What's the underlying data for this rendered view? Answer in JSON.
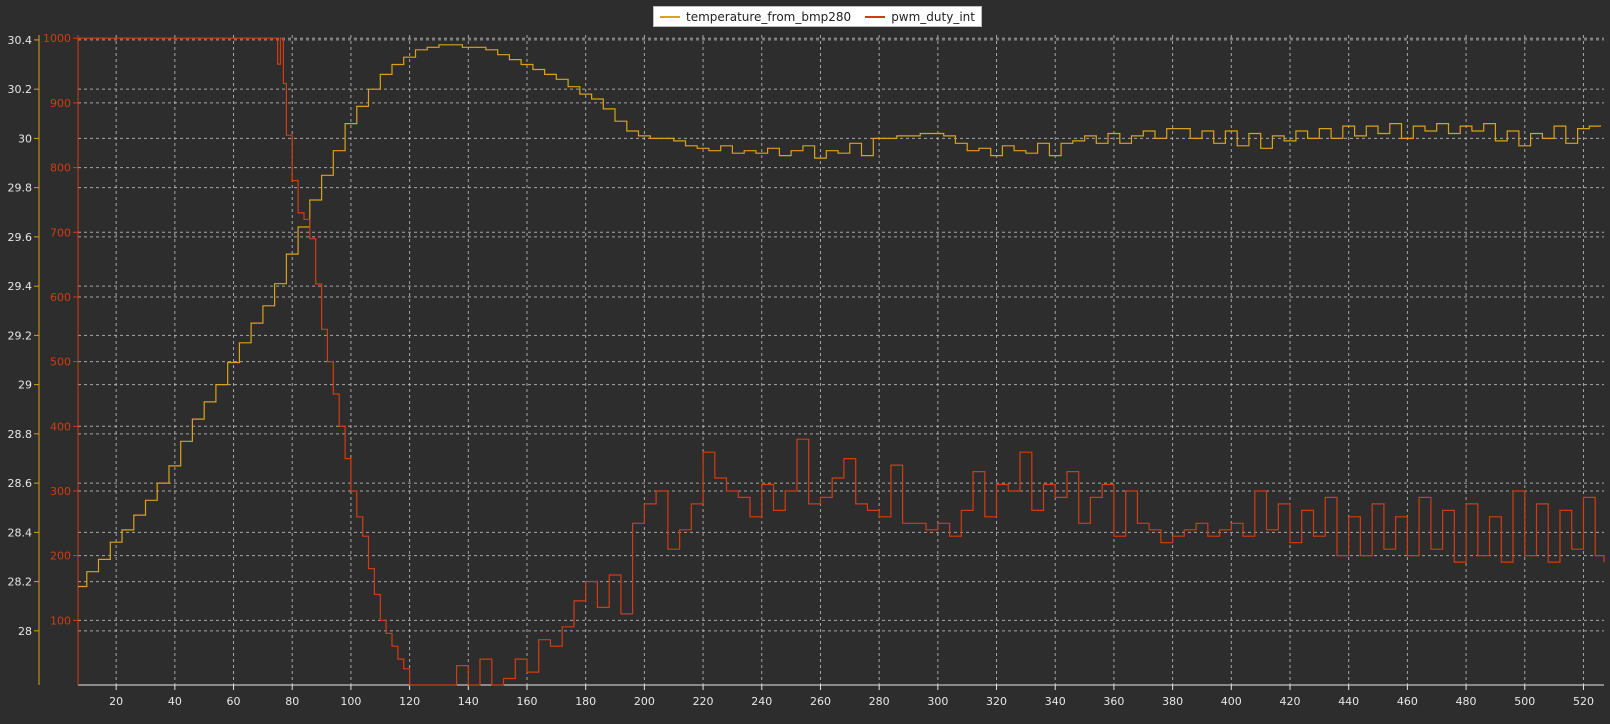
{
  "chart_data": {
    "type": "line",
    "title": "",
    "xlabel": "",
    "grid": true,
    "legend_placement": "top-center",
    "x_range": [
      7,
      527
    ],
    "x_ticks": [
      20,
      40,
      60,
      80,
      100,
      120,
      140,
      160,
      180,
      200,
      220,
      240,
      260,
      280,
      300,
      320,
      340,
      360,
      380,
      400,
      420,
      440,
      460,
      480,
      500,
      520
    ],
    "y_axes": [
      {
        "id": "temp",
        "range": [
          27.78,
          30.42
        ],
        "ticks": [
          28,
          28.2,
          28.4,
          28.6,
          28.8,
          29,
          29.2,
          29.4,
          29.6,
          29.8,
          30,
          30.2,
          30.4
        ],
        "tick_labels": [
          "28",
          "28.2",
          "28.4",
          "28.6",
          "28.8",
          "29",
          "29.2",
          "29.4",
          "29.6",
          "29.8",
          "30",
          "30.2",
          "30.4"
        ],
        "color": "#d9a21a"
      },
      {
        "id": "pwm",
        "range": [
          0,
          1005
        ],
        "ticks": [
          100,
          200,
          300,
          400,
          500,
          600,
          700,
          800,
          900,
          1000
        ],
        "tick_labels": [
          "100",
          "200",
          "300",
          "400",
          "500",
          "600",
          "700",
          "800",
          "900",
          "1000"
        ],
        "color": "#d03c12"
      }
    ],
    "series": [
      {
        "name": "temperature_from_bmp280",
        "color": "#d9a21a",
        "axis": "temp",
        "style": "step",
        "points": [
          [
            7,
            28.18
          ],
          [
            10,
            28.24
          ],
          [
            14,
            28.29
          ],
          [
            18,
            28.36
          ],
          [
            22,
            28.41
          ],
          [
            26,
            28.47
          ],
          [
            30,
            28.53
          ],
          [
            34,
            28.6
          ],
          [
            38,
            28.67
          ],
          [
            42,
            28.77
          ],
          [
            46,
            28.86
          ],
          [
            50,
            28.93
          ],
          [
            54,
            29.0
          ],
          [
            58,
            29.09
          ],
          [
            62,
            29.17
          ],
          [
            66,
            29.25
          ],
          [
            70,
            29.32
          ],
          [
            74,
            29.41
          ],
          [
            78,
            29.53
          ],
          [
            82,
            29.64
          ],
          [
            86,
            29.75
          ],
          [
            90,
            29.85
          ],
          [
            94,
            29.95
          ],
          [
            98,
            30.06
          ],
          [
            102,
            30.13
          ],
          [
            106,
            30.2
          ],
          [
            110,
            30.26
          ],
          [
            114,
            30.3
          ],
          [
            118,
            30.33
          ],
          [
            122,
            30.36
          ],
          [
            126,
            30.37
          ],
          [
            130,
            30.38
          ],
          [
            134,
            30.38
          ],
          [
            138,
            30.37
          ],
          [
            142,
            30.37
          ],
          [
            146,
            30.36
          ],
          [
            150,
            30.34
          ],
          [
            154,
            30.32
          ],
          [
            158,
            30.3
          ],
          [
            162,
            30.28
          ],
          [
            166,
            30.26
          ],
          [
            170,
            30.24
          ],
          [
            174,
            30.21
          ],
          [
            178,
            30.18
          ],
          [
            182,
            30.16
          ],
          [
            186,
            30.12
          ],
          [
            190,
            30.07
          ],
          [
            194,
            30.03
          ],
          [
            198,
            30.01
          ],
          [
            202,
            30.0
          ],
          [
            206,
            30.0
          ],
          [
            210,
            29.99
          ],
          [
            214,
            29.97
          ],
          [
            218,
            29.96
          ],
          [
            222,
            29.95
          ],
          [
            226,
            29.97
          ],
          [
            230,
            29.94
          ],
          [
            234,
            29.95
          ],
          [
            238,
            29.94
          ],
          [
            242,
            29.96
          ],
          [
            246,
            29.93
          ],
          [
            250,
            29.95
          ],
          [
            254,
            29.97
          ],
          [
            258,
            29.92
          ],
          [
            262,
            29.95
          ],
          [
            266,
            29.94
          ],
          [
            270,
            29.98
          ],
          [
            274,
            29.93
          ],
          [
            278,
            30.0
          ],
          [
            282,
            30.0
          ],
          [
            286,
            30.01
          ],
          [
            290,
            30.01
          ],
          [
            294,
            30.02
          ],
          [
            298,
            30.02
          ],
          [
            302,
            30.01
          ],
          [
            306,
            29.98
          ],
          [
            310,
            29.95
          ],
          [
            314,
            29.96
          ],
          [
            318,
            29.93
          ],
          [
            322,
            29.97
          ],
          [
            326,
            29.95
          ],
          [
            330,
            29.94
          ],
          [
            334,
            29.98
          ],
          [
            338,
            29.93
          ],
          [
            342,
            29.98
          ],
          [
            346,
            29.99
          ],
          [
            350,
            30.01
          ],
          [
            354,
            29.98
          ],
          [
            358,
            30.02
          ],
          [
            362,
            29.98
          ],
          [
            366,
            30.01
          ],
          [
            370,
            30.03
          ],
          [
            374,
            30.0
          ],
          [
            378,
            30.04
          ],
          [
            382,
            30.04
          ],
          [
            386,
            30.0
          ],
          [
            390,
            30.03
          ],
          [
            394,
            29.98
          ],
          [
            398,
            30.03
          ],
          [
            402,
            29.97
          ],
          [
            406,
            30.02
          ],
          [
            410,
            29.96
          ],
          [
            414,
            30.01
          ],
          [
            418,
            29.99
          ],
          [
            422,
            30.03
          ],
          [
            426,
            30.0
          ],
          [
            430,
            30.04
          ],
          [
            434,
            30.0
          ],
          [
            438,
            30.05
          ],
          [
            442,
            30.01
          ],
          [
            446,
            30.05
          ],
          [
            450,
            30.02
          ],
          [
            454,
            30.06
          ],
          [
            458,
            30.0
          ],
          [
            462,
            30.05
          ],
          [
            466,
            30.03
          ],
          [
            470,
            30.06
          ],
          [
            474,
            30.02
          ],
          [
            478,
            30.05
          ],
          [
            482,
            30.03
          ],
          [
            486,
            30.06
          ],
          [
            490,
            29.99
          ],
          [
            494,
            30.03
          ],
          [
            498,
            29.97
          ],
          [
            502,
            30.02
          ],
          [
            506,
            30.0
          ],
          [
            510,
            30.05
          ],
          [
            514,
            29.98
          ],
          [
            518,
            30.04
          ],
          [
            522,
            30.05
          ],
          [
            526,
            30.05
          ]
        ]
      },
      {
        "name": "pwm_duty_int",
        "color": "#d03c12",
        "axis": "pwm",
        "style": "step",
        "points": [
          [
            7,
            1000
          ],
          [
            74,
            1000
          ],
          [
            75,
            960
          ],
          [
            76,
            1000
          ],
          [
            77,
            930
          ],
          [
            78,
            850
          ],
          [
            80,
            780
          ],
          [
            82,
            730
          ],
          [
            84,
            720
          ],
          [
            86,
            690
          ],
          [
            88,
            620
          ],
          [
            90,
            550
          ],
          [
            92,
            500
          ],
          [
            94,
            450
          ],
          [
            96,
            400
          ],
          [
            98,
            350
          ],
          [
            100,
            300
          ],
          [
            102,
            260
          ],
          [
            104,
            230
          ],
          [
            106,
            180
          ],
          [
            108,
            140
          ],
          [
            110,
            100
          ],
          [
            112,
            80
          ],
          [
            114,
            60
          ],
          [
            116,
            40
          ],
          [
            118,
            25
          ],
          [
            120,
            0
          ],
          [
            124,
            0
          ],
          [
            128,
            0
          ],
          [
            132,
            0
          ],
          [
            136,
            30
          ],
          [
            140,
            0
          ],
          [
            144,
            40
          ],
          [
            148,
            0
          ],
          [
            152,
            10
          ],
          [
            156,
            40
          ],
          [
            160,
            20
          ],
          [
            164,
            70
          ],
          [
            168,
            60
          ],
          [
            172,
            90
          ],
          [
            176,
            130
          ],
          [
            180,
            160
          ],
          [
            184,
            120
          ],
          [
            188,
            170
          ],
          [
            192,
            110
          ],
          [
            196,
            250
          ],
          [
            200,
            280
          ],
          [
            204,
            300
          ],
          [
            208,
            210
          ],
          [
            212,
            240
          ],
          [
            216,
            280
          ],
          [
            220,
            360
          ],
          [
            224,
            320
          ],
          [
            228,
            300
          ],
          [
            232,
            290
          ],
          [
            236,
            260
          ],
          [
            240,
            310
          ],
          [
            244,
            270
          ],
          [
            248,
            300
          ],
          [
            252,
            380
          ],
          [
            256,
            280
          ],
          [
            260,
            290
          ],
          [
            264,
            320
          ],
          [
            268,
            350
          ],
          [
            272,
            280
          ],
          [
            276,
            270
          ],
          [
            280,
            260
          ],
          [
            284,
            340
          ],
          [
            288,
            250
          ],
          [
            292,
            250
          ],
          [
            296,
            240
          ],
          [
            300,
            250
          ],
          [
            304,
            230
          ],
          [
            308,
            270
          ],
          [
            312,
            330
          ],
          [
            316,
            260
          ],
          [
            320,
            310
          ],
          [
            324,
            300
          ],
          [
            328,
            360
          ],
          [
            332,
            270
          ],
          [
            336,
            310
          ],
          [
            340,
            290
          ],
          [
            344,
            330
          ],
          [
            348,
            250
          ],
          [
            352,
            290
          ],
          [
            356,
            310
          ],
          [
            360,
            230
          ],
          [
            364,
            300
          ],
          [
            368,
            250
          ],
          [
            372,
            240
          ],
          [
            376,
            220
          ],
          [
            380,
            230
          ],
          [
            384,
            240
          ],
          [
            388,
            250
          ],
          [
            392,
            230
          ],
          [
            396,
            240
          ],
          [
            400,
            250
          ],
          [
            404,
            230
          ],
          [
            408,
            300
          ],
          [
            412,
            240
          ],
          [
            416,
            280
          ],
          [
            420,
            220
          ],
          [
            424,
            270
          ],
          [
            428,
            230
          ],
          [
            432,
            290
          ],
          [
            436,
            200
          ],
          [
            440,
            260
          ],
          [
            444,
            200
          ],
          [
            448,
            280
          ],
          [
            452,
            210
          ],
          [
            456,
            260
          ],
          [
            460,
            200
          ],
          [
            464,
            290
          ],
          [
            468,
            210
          ],
          [
            472,
            270
          ],
          [
            476,
            190
          ],
          [
            480,
            280
          ],
          [
            484,
            200
          ],
          [
            488,
            260
          ],
          [
            492,
            190
          ],
          [
            496,
            300
          ],
          [
            500,
            200
          ],
          [
            504,
            280
          ],
          [
            508,
            190
          ],
          [
            512,
            270
          ],
          [
            516,
            210
          ],
          [
            520,
            290
          ],
          [
            524,
            200
          ],
          [
            527,
            190
          ]
        ]
      }
    ]
  }
}
